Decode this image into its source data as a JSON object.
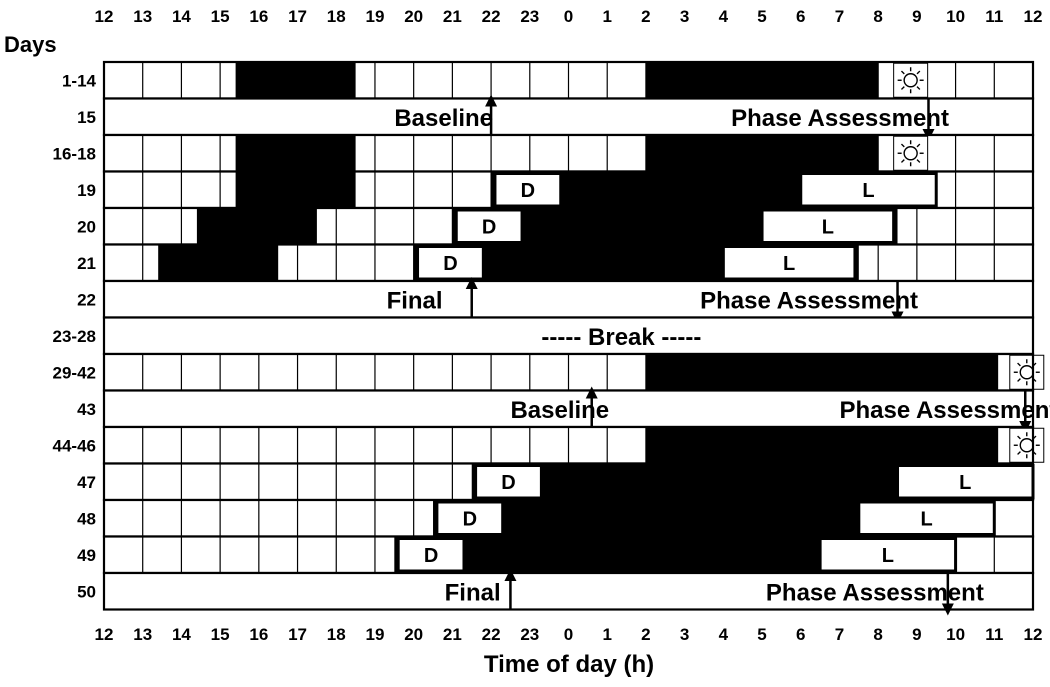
{
  "header": {
    "days_label": "Days"
  },
  "axis": {
    "xlabel": "Time of day (h)",
    "ticks": [
      "12",
      "13",
      "14",
      "15",
      "16",
      "17",
      "18",
      "19",
      "20",
      "21",
      "22",
      "23",
      "0",
      "1",
      "2",
      "3",
      "4",
      "5",
      "6",
      "7",
      "8",
      "9",
      "10",
      "11",
      "12"
    ]
  },
  "rows": [
    {
      "day": "1-14",
      "type": "grid",
      "dark": [
        [
          15.4,
          18.5
        ],
        [
          26,
          32
        ]
      ],
      "sun": 32.4
    },
    {
      "day": "15",
      "type": "text",
      "texts": [
        {
          "t": "Baseline",
          "x": 19.5
        },
        {
          "t": "Phase Assessment",
          "x": 28.2
        }
      ],
      "arrows": [
        {
          "x": 22,
          "dir": "up"
        },
        {
          "x": 33.3,
          "dir": "down"
        }
      ]
    },
    {
      "day": "16-18",
      "type": "grid",
      "dark": [
        [
          15.4,
          18.5
        ],
        [
          26,
          32
        ]
      ],
      "sun": 32.4
    },
    {
      "day": "19",
      "type": "grid",
      "dark": [
        [
          15.4,
          18.5
        ],
        [
          22,
          33.5
        ]
      ],
      "D": [
        22.1,
        23.8
      ],
      "L": [
        30,
        33.5
      ]
    },
    {
      "day": "20",
      "type": "grid",
      "dark": [
        [
          14.4,
          17.5
        ],
        [
          21,
          32.5
        ]
      ],
      "D": [
        21.1,
        22.8
      ],
      "L": [
        29,
        32.4
      ]
    },
    {
      "day": "21",
      "type": "grid",
      "dark": [
        [
          13.4,
          16.5
        ],
        [
          20,
          31.5
        ]
      ],
      "D": [
        20.1,
        21.8
      ],
      "L": [
        28,
        31.4
      ]
    },
    {
      "day": "22",
      "type": "text",
      "texts": [
        {
          "t": "Final",
          "x": 19.3
        },
        {
          "t": "Phase Assessment",
          "x": 27.4
        }
      ],
      "arrows": [
        {
          "x": 21.5,
          "dir": "up"
        },
        {
          "x": 32.5,
          "dir": "down"
        }
      ]
    },
    {
      "day": "23-28",
      "type": "text",
      "texts": [
        {
          "t": "----- Break -----",
          "x": 23.3
        }
      ],
      "arrows": []
    },
    {
      "day": "29-42",
      "type": "grid",
      "dark": [
        [
          26,
          35.1
        ]
      ],
      "sun": 35.4
    },
    {
      "day": "43",
      "type": "text",
      "texts": [
        {
          "t": "Baseline",
          "x": 22.5
        },
        {
          "t": "Phase Assessment",
          "x": 31
        }
      ],
      "arrows": [
        {
          "x": 24.6,
          "dir": "up"
        },
        {
          "x": 35.8,
          "dir": "down"
        }
      ]
    },
    {
      "day": "44-46",
      "type": "grid",
      "dark": [
        [
          26,
          35.1
        ]
      ],
      "sun": 35.4
    },
    {
      "day": "47",
      "type": "grid",
      "dark": [
        [
          21.5,
          36
        ]
      ],
      "D": [
        21.6,
        23.3
      ],
      "L": [
        32.5,
        36
      ]
    },
    {
      "day": "48",
      "type": "grid",
      "dark": [
        [
          20.5,
          35
        ]
      ],
      "D": [
        20.6,
        22.3
      ],
      "L": [
        31.5,
        35
      ]
    },
    {
      "day": "49",
      "type": "grid",
      "dark": [
        [
          19.5,
          34
        ]
      ],
      "D": [
        19.6,
        21.3
      ],
      "L": [
        30.5,
        34
      ]
    },
    {
      "day": "50",
      "type": "text",
      "texts": [
        {
          "t": "Final",
          "x": 20.8
        },
        {
          "t": "Phase Assessment",
          "x": 29.1
        }
      ],
      "arrows": [
        {
          "x": 22.5,
          "dir": "up"
        },
        {
          "x": 33.8,
          "dir": "down"
        }
      ]
    }
  ],
  "box_labels": {
    "dark": "D",
    "light": "L"
  }
}
